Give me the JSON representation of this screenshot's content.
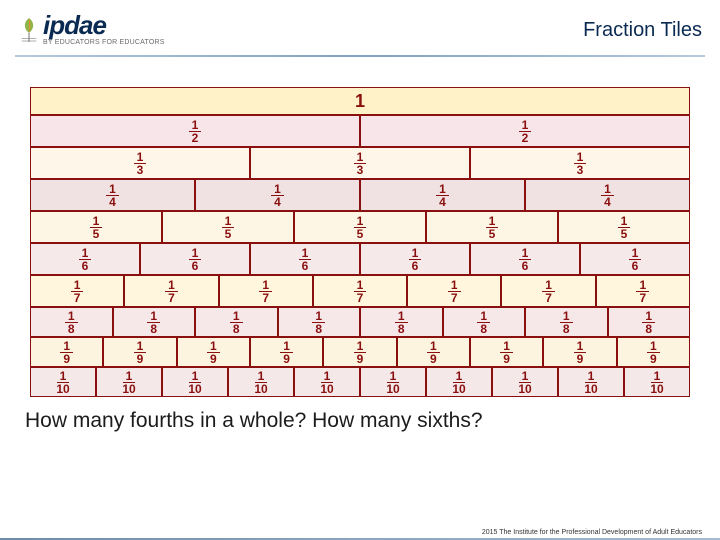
{
  "header": {
    "logo_main": "ipdae",
    "logo_sub": "BY EDUCATORS FOR EDUCATORS",
    "title": "Fraction Tiles"
  },
  "rows": [
    {
      "denom": 1,
      "count": 1
    },
    {
      "denom": 2,
      "count": 2
    },
    {
      "denom": 3,
      "count": 3
    },
    {
      "denom": 4,
      "count": 4
    },
    {
      "denom": 5,
      "count": 5
    },
    {
      "denom": 6,
      "count": 6
    },
    {
      "denom": 7,
      "count": 7
    },
    {
      "denom": 8,
      "count": 8
    },
    {
      "denom": 9,
      "count": 9
    },
    {
      "denom": 10,
      "count": 10
    }
  ],
  "question": "How many fourths in a whole? How many sixths?",
  "footer": "2015 The Institute for the Professional Development of Adult Educators",
  "colors": {
    "title": "#0a2a52",
    "fraction_text": "#8a0f0f",
    "fraction_border": "#8a0f0f"
  }
}
